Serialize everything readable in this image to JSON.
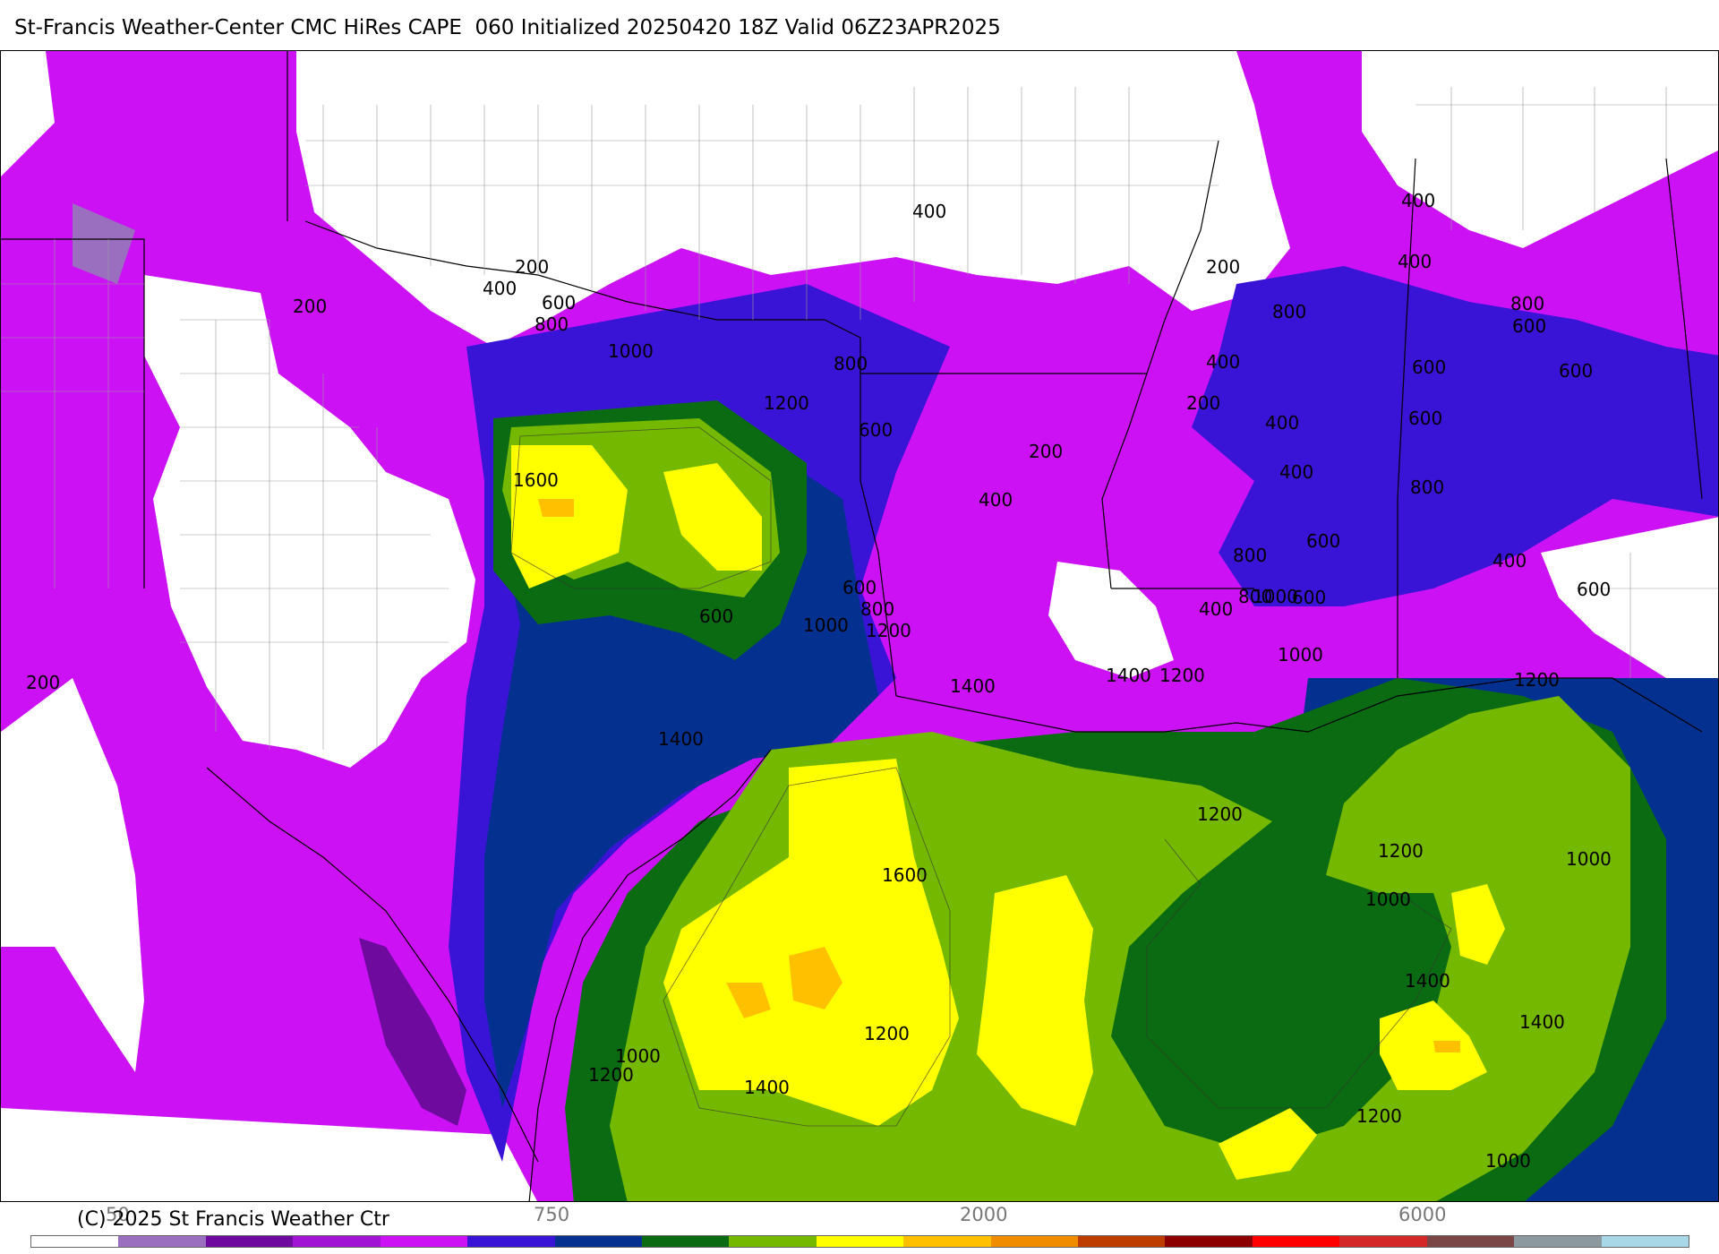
{
  "title": "St-Francis Weather-Center CMC HiRes CAPE  060 Initialized 20250420 18Z Valid 06Z23APR2025",
  "copyright": "(C) 2025 St Francis Weather Ctr",
  "legend": {
    "colors": [
      "#ffffff",
      "#9b6fc0",
      "#6e0a9e",
      "#a214d4",
      "#cc12f5",
      "#3a14d6",
      "#04308f",
      "#0a6b12",
      "#74b800",
      "#ffff00",
      "#ffc000",
      "#f08c00",
      "#bd3c00",
      "#8c0000",
      "#ff0000",
      "#d42828",
      "#7a4646",
      "#8c9aa0",
      "#a8d8e8"
    ],
    "tick_labels": [
      "50",
      "750",
      "2000",
      "6000"
    ]
  },
  "contour_labels": [
    "400",
    "200",
    "400",
    "600",
    "800",
    "200",
    "1000",
    "800",
    "1200",
    "600",
    "1600",
    "200",
    "400",
    "600",
    "800",
    "600",
    "800",
    "1200",
    "1000",
    "1400",
    "1000",
    "1400",
    "1600",
    "1200",
    "1400",
    "1200",
    "1000",
    "400",
    "200",
    "400",
    "400",
    "200",
    "400",
    "800",
    "400",
    "600",
    "600",
    "400",
    "800",
    "600",
    "600",
    "800",
    "600",
    "800",
    "400",
    "600",
    "1000",
    "1200",
    "1400",
    "1200",
    "1200",
    "1200",
    "1000",
    "1000",
    "1400",
    "1400",
    "1200",
    "1000",
    "600",
    "200"
  ]
}
